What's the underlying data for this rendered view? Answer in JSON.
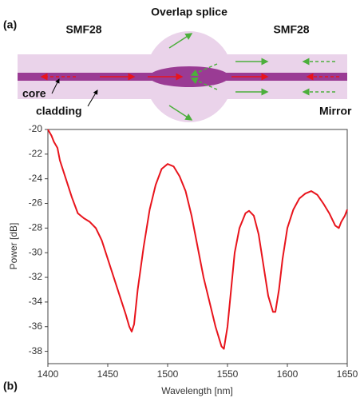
{
  "diagram": {
    "panel_label": "(a)",
    "left_fiber": "SMF28",
    "splice": "Overlap splice",
    "right_fiber": "SMF28",
    "core": "core",
    "cladding": "cladding",
    "mirror": "Mirror"
  },
  "chart_data": {
    "type": "line",
    "panel_label": "(b)",
    "x_label": "Wavelength [nm]",
    "y_label": "Power [dB]",
    "x": [
      1400,
      1403,
      1405,
      1408,
      1410,
      1415,
      1420,
      1425,
      1430,
      1435,
      1440,
      1445,
      1450,
      1455,
      1460,
      1465,
      1468,
      1470,
      1472,
      1475,
      1480,
      1485,
      1490,
      1495,
      1500,
      1505,
      1510,
      1515,
      1520,
      1525,
      1530,
      1535,
      1540,
      1545,
      1547,
      1550,
      1553,
      1556,
      1560,
      1565,
      1568,
      1572,
      1576,
      1580,
      1584,
      1588,
      1590,
      1593,
      1596,
      1600,
      1605,
      1610,
      1615,
      1620,
      1625,
      1630,
      1635,
      1640,
      1643,
      1645,
      1648,
      1650
    ],
    "series": [
      {
        "color": "#e8141c",
        "values": [
          -20,
          -20.5,
          -21,
          -21.5,
          -22.5,
          -24,
          -25.5,
          -26.8,
          -27.2,
          -27.5,
          -28,
          -29,
          -30.5,
          -32,
          -33.5,
          -35,
          -36,
          -36.4,
          -35.8,
          -33,
          -29.5,
          -26.5,
          -24.5,
          -23.2,
          -22.8,
          -23,
          -23.8,
          -25,
          -27,
          -29.5,
          -32,
          -34,
          -36,
          -37.6,
          -37.8,
          -36,
          -33,
          -30,
          -28,
          -26.8,
          -26.6,
          -27,
          -28.5,
          -31,
          -33.5,
          -34.8,
          -34.8,
          -33,
          -30.5,
          -28,
          -26.5,
          -25.6,
          -25.2,
          -25,
          -25.3,
          -26,
          -26.8,
          -27.8,
          -28,
          -27.5,
          -27,
          -26.5
        ]
      }
    ],
    "xlim": [
      1400,
      1650
    ],
    "ylim": [
      -39,
      -20
    ],
    "xticks": [
      1400,
      1450,
      1500,
      1550,
      1600,
      1650
    ],
    "yticks": [
      -20,
      -22,
      -24,
      -26,
      -28,
      -30,
      -32,
      -34,
      -36,
      -38
    ]
  }
}
